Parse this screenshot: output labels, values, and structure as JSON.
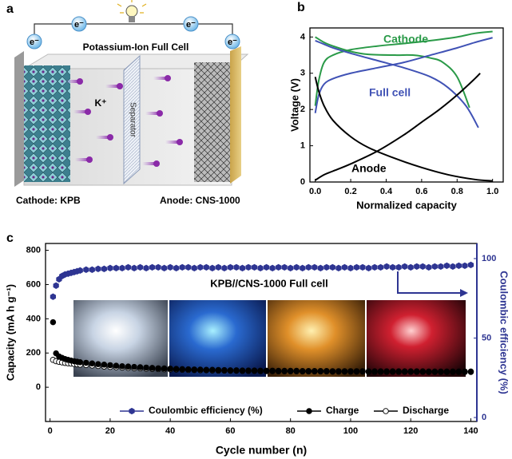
{
  "schematic": {
    "panel_label": "a",
    "title": "Potassium-Ion Full Cell",
    "electrons": [
      "e⁻",
      "e⁻",
      "e⁻",
      "e⁻"
    ],
    "ion": "K⁺",
    "separator": "Separator",
    "cathode": "Cathode: KPB",
    "anode": "Anode: CNS-1000"
  },
  "chart_data": [
    {
      "type": "line",
      "panel_label": "b",
      "xlabel": "Normalized capacity",
      "ylabel": "Voltage (V)",
      "xlim": [
        -0.03,
        1.06
      ],
      "ylim": [
        0,
        4.25
      ],
      "xticks": [
        {
          "value": 0,
          "label": "0.0"
        },
        0.2,
        0.4,
        0.6,
        0.8,
        {
          "value": 1,
          "label": "1.0"
        }
      ],
      "yticks": [
        0,
        1,
        2,
        3,
        4
      ],
      "series": [
        {
          "name": "Cathode",
          "color": "#2a9a48",
          "x": [
            0,
            0.02,
            0.05,
            0.1,
            0.2,
            0.35,
            0.5,
            0.65,
            0.8,
            0.9,
            1.0
          ],
          "values": [
            2.1,
            2.8,
            3.3,
            3.5,
            3.65,
            3.75,
            3.82,
            3.9,
            4.0,
            4.1,
            4.15
          ]
        },
        {
          "color": "#2a9a48",
          "x": [
            0,
            0.05,
            0.1,
            0.2,
            0.3,
            0.45,
            0.55,
            0.65,
            0.72,
            0.8,
            0.87
          ],
          "values": [
            4.0,
            3.85,
            3.75,
            3.6,
            3.52,
            3.5,
            3.5,
            3.42,
            3.3,
            2.9,
            2.05
          ]
        },
        {
          "name": "Full cell",
          "color": "#4052b5",
          "x": [
            0,
            0.02,
            0.05,
            0.1,
            0.2,
            0.35,
            0.5,
            0.65,
            0.8,
            0.9,
            1.0
          ],
          "values": [
            1.9,
            2.4,
            2.7,
            2.85,
            3.0,
            3.15,
            3.3,
            3.5,
            3.7,
            3.85,
            3.98
          ]
        },
        {
          "color": "#4052b5",
          "x": [
            0,
            0.05,
            0.1,
            0.2,
            0.35,
            0.5,
            0.65,
            0.75,
            0.85,
            0.92
          ],
          "values": [
            3.9,
            3.8,
            3.7,
            3.55,
            3.35,
            3.15,
            2.9,
            2.6,
            2.1,
            1.5
          ]
        },
        {
          "name": "Anode",
          "color": "#000000",
          "x": [
            0,
            0.02,
            0.05,
            0.1,
            0.2,
            0.3,
            0.45,
            0.6,
            0.75,
            0.9,
            1.0
          ],
          "values": [
            2.9,
            2.5,
            2.1,
            1.7,
            1.25,
            0.95,
            0.65,
            0.4,
            0.2,
            0.07,
            0.03
          ]
        },
        {
          "color": "#000000",
          "x": [
            0,
            0.05,
            0.1,
            0.2,
            0.35,
            0.5,
            0.6,
            0.7,
            0.8,
            0.9,
            0.93
          ],
          "values": [
            0.05,
            0.2,
            0.3,
            0.5,
            0.85,
            1.3,
            1.65,
            2.0,
            2.4,
            2.85,
            3.0
          ]
        }
      ]
    },
    {
      "type": "scatter",
      "panel_label": "c",
      "annotation": "KPB//CNS-1000  Full cell",
      "xlabel": "Cycle number (n)",
      "ylabel": "Capacity (mA h g⁻¹)",
      "y2label": "Coulombic efficiency (%)",
      "xlim": [
        -1.5,
        142
      ],
      "ylim": [
        -200,
        840
      ],
      "y2lim": [
        -2.5,
        109.5
      ],
      "xticks": [
        0,
        20,
        40,
        60,
        80,
        100,
        120,
        140
      ],
      "yticks": [
        0,
        200,
        400,
        600,
        800
      ],
      "y2ticks": [
        0,
        50,
        100
      ],
      "legend": "bottom",
      "x": [
        1,
        2,
        3,
        4,
        5,
        6,
        7,
        8,
        9,
        10,
        12,
        14,
        16,
        18,
        20,
        22,
        24,
        26,
        28,
        30,
        32,
        34,
        36,
        38,
        40,
        42,
        44,
        46,
        48,
        50,
        52,
        54,
        56,
        58,
        60,
        62,
        64,
        66,
        68,
        70,
        72,
        74,
        76,
        78,
        80,
        82,
        84,
        86,
        88,
        90,
        92,
        94,
        96,
        98,
        100,
        102,
        104,
        106,
        108,
        110,
        112,
        114,
        116,
        118,
        120,
        122,
        124,
        126,
        128,
        130,
        132,
        134,
        136,
        138,
        140
      ],
      "series": [
        {
          "name": "Coulombic efficiency (%)",
          "color": "#2e3592",
          "axis": "y2",
          "values": [
            76,
            83,
            87,
            89,
            90,
            90.5,
            91,
            91.5,
            92,
            92.5,
            93,
            93,
            93.5,
            93.5,
            94,
            94,
            94,
            94.5,
            94,
            94.5,
            94,
            94.5,
            94.5,
            94,
            94.5,
            94,
            94.5,
            94.5,
            94,
            94.5,
            94.5,
            94,
            94.5,
            94,
            94.5,
            94.5,
            94,
            94.5,
            94.5,
            94,
            94.5,
            94,
            94.5,
            94.5,
            94,
            94.5,
            94,
            94.5,
            94.5,
            94,
            94.5,
            94.5,
            94,
            94.5,
            94,
            94.5,
            94.5,
            94,
            94.5,
            94.5,
            95,
            94.5,
            94.5,
            95,
            94.5,
            95,
            95,
            94.5,
            95,
            95,
            95.5,
            95,
            95.5,
            95.5,
            96
          ]
        },
        {
          "name": "Charge",
          "color": "#000000",
          "values": [
            380,
            198,
            180,
            172,
            165,
            160,
            156,
            152,
            149,
            146,
            143,
            139,
            135,
            132,
            129,
            126,
            123,
            121,
            119,
            117,
            115,
            113,
            111,
            110,
            109,
            107,
            106,
            105,
            104,
            103,
            102,
            102,
            101,
            100,
            99,
            99,
            98,
            98,
            98,
            97,
            97,
            97,
            96,
            96,
            96,
            96,
            95,
            95,
            95,
            95,
            95,
            94,
            94,
            94,
            94,
            94,
            94,
            93,
            93,
            93,
            93,
            93,
            93,
            93,
            93,
            93,
            93,
            92,
            92,
            92,
            92,
            92,
            92,
            92,
            92
          ]
        },
        {
          "name": "Discharge",
          "color": "#000000",
          "values": [
            160,
            152,
            148,
            145,
            142,
            140,
            138,
            136,
            134,
            132,
            130,
            127,
            124,
            121,
            119,
            117,
            115,
            113,
            111,
            110,
            108,
            107,
            106,
            105,
            104,
            103,
            102,
            101,
            100,
            99,
            99,
            98,
            97,
            97,
            96,
            96,
            95,
            95,
            95,
            94,
            94,
            94,
            93,
            93,
            93,
            93,
            92,
            92,
            92,
            92,
            92,
            91,
            91,
            91,
            91,
            91,
            91,
            90,
            90,
            90,
            90,
            90,
            90,
            90,
            90,
            90,
            90,
            89,
            89,
            89,
            89,
            89,
            89,
            89,
            89
          ]
        }
      ]
    }
  ]
}
